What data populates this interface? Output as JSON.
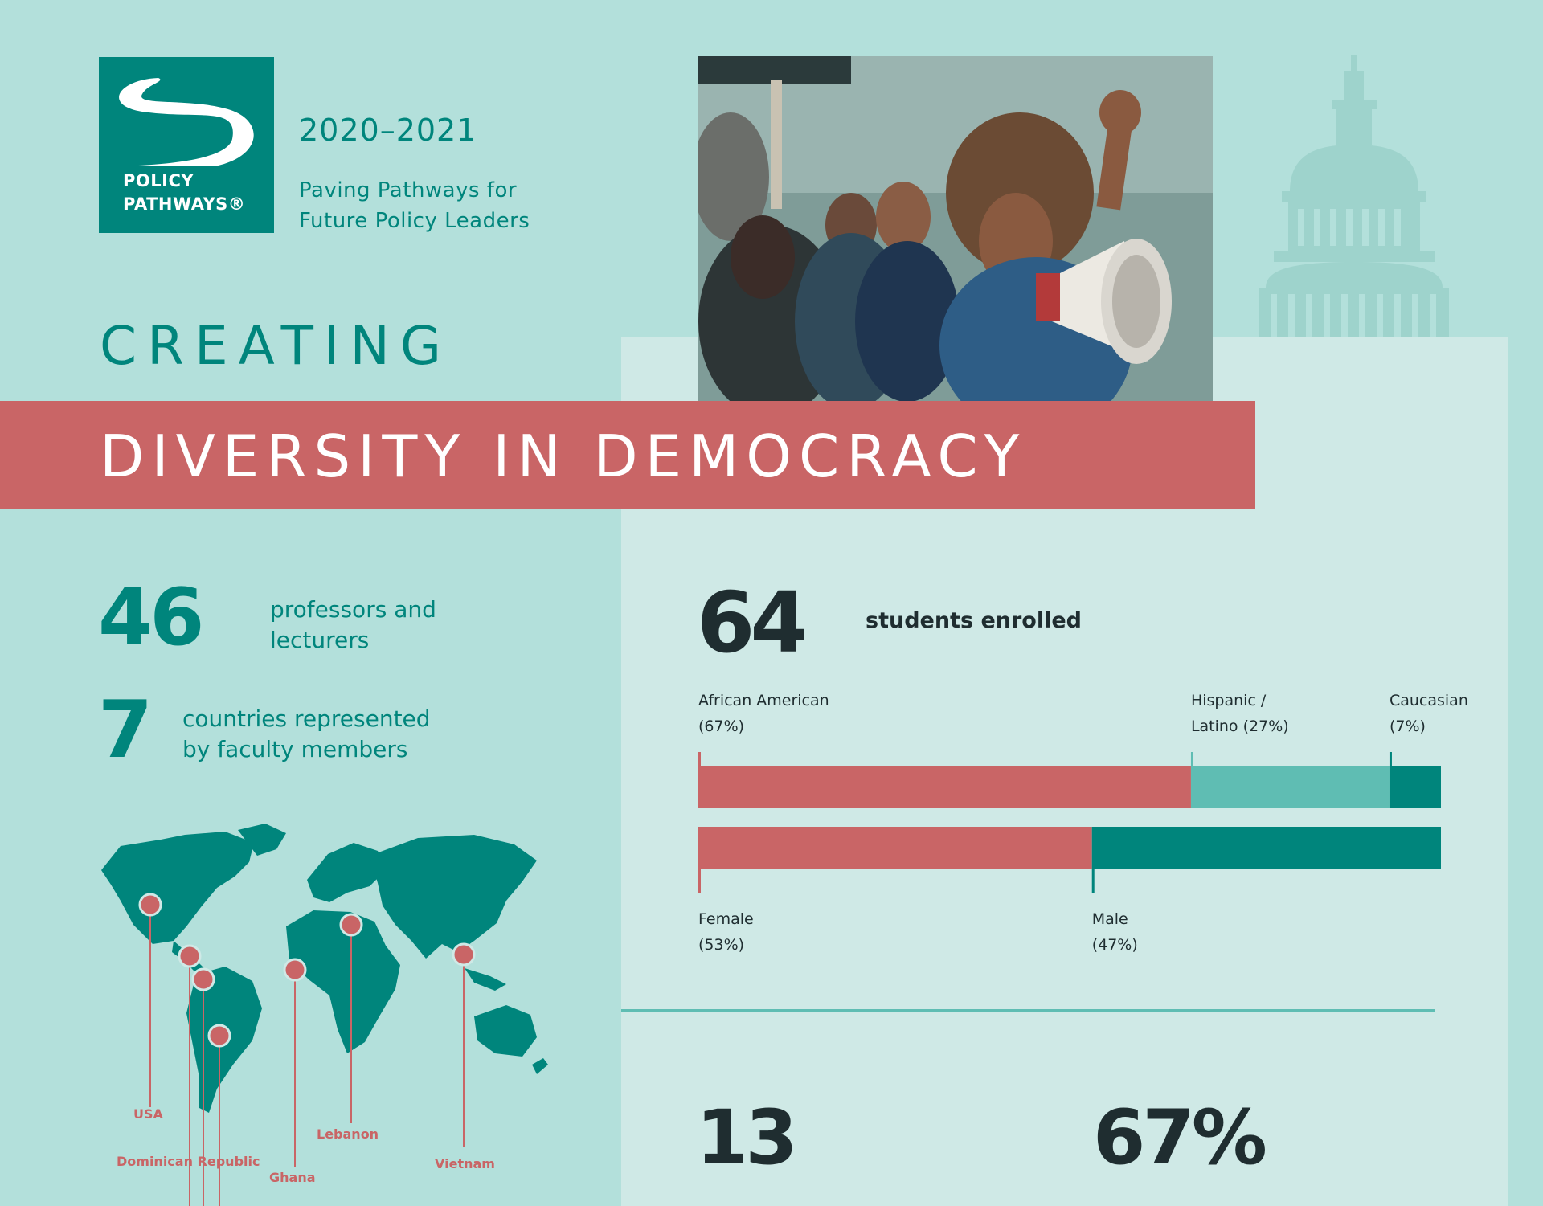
{
  "header": {
    "logo_line1": "POLICY",
    "logo_line2": "PATHWAYS®",
    "years": "2020–2021",
    "tagline_line1": "Paving Pathways for",
    "tagline_line2": "Future Policy Leaders"
  },
  "title": {
    "creating": "CREATING",
    "banner": "DIVERSITY IN DEMOCRACY"
  },
  "colors": {
    "background": "#b3e0db",
    "panel": "#cfe9e6",
    "teal_dark": "#00857c",
    "teal_light": "#5fbdb3",
    "coral": "#c96566",
    "ink": "#1f2d30"
  },
  "faculty": {
    "professors_count": "46",
    "professors_label_line1": "professors and",
    "professors_label_line2": "lecturers",
    "countries_count": "7",
    "countries_label_line1": "countries represented",
    "countries_label_line2": "by faculty members"
  },
  "map": {
    "countries": [
      "USA",
      "Dominican Republic",
      "Ghana",
      "Lebanon",
      "Vietnam"
    ]
  },
  "students": {
    "count": "64",
    "label": "students enrolled"
  },
  "chart_data": [
    {
      "type": "bar",
      "orientation": "horizontal-stacked",
      "categories": [
        "African American",
        "Hispanic / Latino",
        "Caucasian"
      ],
      "values": [
        67,
        27,
        7
      ],
      "labels": [
        {
          "line1": "African American",
          "line2": "(67%)"
        },
        {
          "line1": "Hispanic /",
          "line2": "Latino (27%)"
        },
        {
          "line1": "Caucasian",
          "line2": "(7%)"
        }
      ],
      "colors": [
        "#c96566",
        "#5fbdb3",
        "#00857c"
      ]
    },
    {
      "type": "bar",
      "orientation": "horizontal-stacked",
      "categories": [
        "Female",
        "Male"
      ],
      "values": [
        53,
        47
      ],
      "labels": [
        {
          "line1": "Female",
          "line2": "(53%)"
        },
        {
          "line1": "Male",
          "line2": "(47%)"
        }
      ],
      "colors": [
        "#c96566",
        "#00857c"
      ]
    }
  ],
  "bottom_stats": {
    "left_value": "13",
    "right_value": "67%"
  }
}
